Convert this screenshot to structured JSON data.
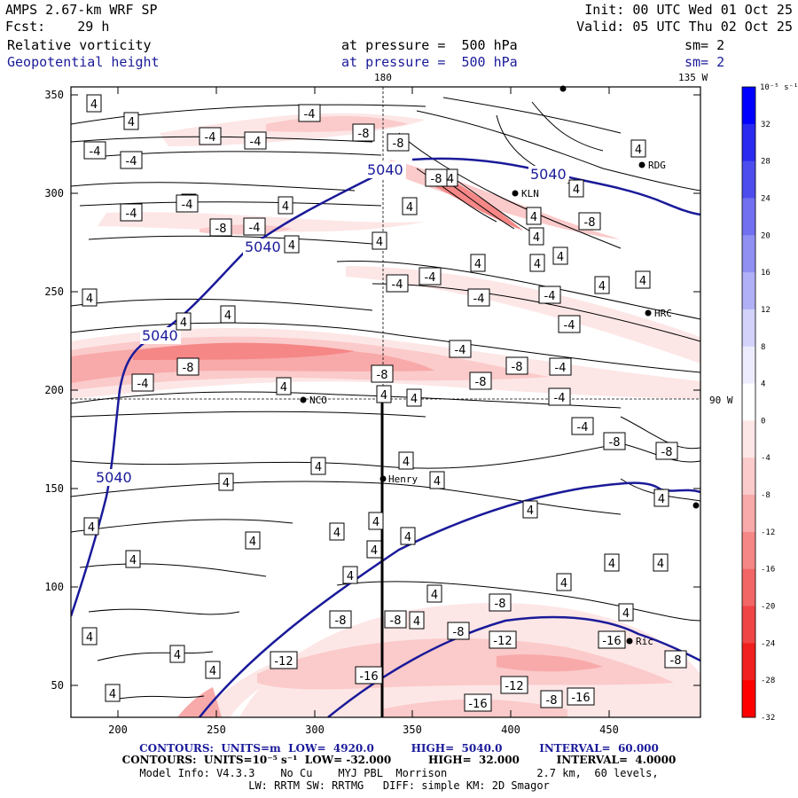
{
  "header": {
    "model": "AMPS 2.67-km WRF SP",
    "init": "Init: 00 UTC Wed 01 Oct 25",
    "fcst": "Fcst:    29 h",
    "valid": "Valid: 05 UTC Thu 02 Oct 25",
    "field1": "Relative vorticity",
    "field1_level": "at pressure =  500 hPa",
    "field1_sm": "sm= 2",
    "field2": "Geopotential height",
    "field2_level": "at pressure =  500 hPa",
    "field2_sm": "sm= 2"
  },
  "map": {
    "x_ticks": [
      "200",
      "250",
      "300",
      "350",
      "400",
      "450"
    ],
    "y_ticks": [
      "350",
      "300",
      "250",
      "200",
      "150",
      "100",
      "50"
    ],
    "meridian_labels": [
      "180",
      "135 W",
      "90 W"
    ],
    "stations": [
      "RDG",
      "KLN",
      "HRC",
      "NCO",
      "Henry",
      "Ric"
    ],
    "height_contour_labels": [
      "5040",
      "5040",
      "5040",
      "5040",
      "5040"
    ],
    "vort_labels_pos": [
      "4",
      "4",
      "4",
      "4",
      "4",
      "4",
      "4",
      "4",
      "4",
      "4",
      "4",
      "4",
      "4",
      "4",
      "4",
      "4",
      "4",
      "4",
      "4",
      "4",
      "4",
      "4",
      "4",
      "4",
      "4",
      "4",
      "4",
      "4",
      "4",
      "4",
      "4",
      "4",
      "4",
      "4",
      "4",
      "4",
      "4",
      "4",
      "4",
      "4",
      "4",
      "4",
      "4",
      "4",
      "4",
      "4",
      "4"
    ],
    "vort_labels_neg": [
      "-4",
      "-4",
      "-4",
      "-4",
      "-4",
      "-4",
      "-4",
      "-4",
      "-4",
      "-4",
      "-4",
      "-4",
      "-4",
      "-4",
      "-4",
      "-4",
      "-4",
      "-4",
      "-8",
      "-8",
      "-8",
      "-8",
      "-8",
      "-8",
      "-8",
      "-8",
      "-8",
      "-8",
      "-8",
      "-8",
      "-8",
      "-8",
      "-8",
      "-8",
      "-8",
      "-12",
      "-12",
      "-12",
      "-16",
      "-16",
      "-16",
      "-16"
    ],
    "accent_blue": "#1a1a9a",
    "line_color": "#000000"
  },
  "colorbar": {
    "unit": "10⁻⁵ s⁻¹",
    "ticks": [
      "32",
      "28",
      "24",
      "20",
      "16",
      "12",
      "8",
      "4",
      "0",
      "-4",
      "-8",
      "-12",
      "-16",
      "-20",
      "-24",
      "-28",
      "-32"
    ],
    "colors": [
      "#0000ff",
      "#2a2af0",
      "#4d4dee",
      "#7070f0",
      "#9090f2",
      "#b0b0f6",
      "#d2d2fa",
      "#ececfe",
      "#ffffff",
      "#fde6e6",
      "#fbcaca",
      "#f8a9a9",
      "#f58787",
      "#f26666",
      "#f04545",
      "#f02020",
      "#ff0000"
    ]
  },
  "footer": {
    "line1": "CONTOURS:  UNITS=m  LOW=  4920.0          HIGH=  5040.0          INTERVAL=  60.000",
    "line2": "CONTOURS:  UNITS=10⁻⁵ s⁻¹  LOW= -32.000          HIGH=  32.000          INTERVAL=  4.0000",
    "line3": "Model Info: V4.3.3    No Cu    MYJ PBL  Morrison              2.7 km,  60 levels,",
    "line4": "LW: RRTM SW: RRTMG   DIFF: simple KM: 2D Smagor"
  }
}
